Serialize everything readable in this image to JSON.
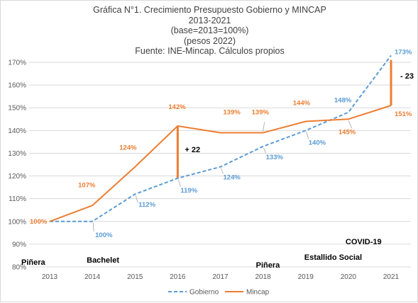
{
  "chart_data": {
    "type": "line",
    "title": "Gráfica N°1. Crecimiento Presupuesto Gobierno y MINCAP",
    "subtitle_lines": [
      "2013-2021",
      "(base=2013=100%)",
      "(pesos 2022)",
      "Fuente: INE-Mincap. Cálculos propios"
    ],
    "x": [
      "2013",
      "2014",
      "2015",
      "2016",
      "2017",
      "2018",
      "2019",
      "2020",
      "2021"
    ],
    "ylim": [
      80,
      170
    ],
    "y_ticks": [
      "80%",
      "90%",
      "100%",
      "110%",
      "120%",
      "130%",
      "140%",
      "150%",
      "160%",
      "170%"
    ],
    "grid": "horizontal",
    "legend_position": "bottom",
    "series": [
      {
        "name": "Gobierno",
        "color": "#5b9bd5",
        "style": "dashed",
        "values": [
          100,
          100,
          112,
          119,
          124,
          133,
          140,
          148,
          173
        ],
        "labels": [
          "",
          "100%",
          "112%",
          "119%",
          "124%",
          "133%",
          "140%",
          "148%",
          "173%"
        ]
      },
      {
        "name": "Mincap",
        "color": "#ed7d31",
        "style": "solid",
        "values": [
          100,
          107,
          124,
          142,
          139,
          139,
          144,
          145,
          151
        ],
        "labels": [
          "100%",
          "107%",
          "124%",
          "142%",
          "139%",
          "139%",
          "144%",
          "145%",
          "151%"
        ]
      }
    ],
    "gap_annotations": [
      {
        "x": "2016",
        "text": "+ 22",
        "from": 119,
        "to": 142
      },
      {
        "x": "2021",
        "text": "- 23",
        "from": 151,
        "to": 171
      }
    ],
    "period_labels": [
      {
        "text": "Piñera",
        "x": "2013"
      },
      {
        "text": "Bachelet",
        "x": "2014"
      },
      {
        "text": "Piñera",
        "x": "2018"
      },
      {
        "text": "Estallido Social",
        "x": "2019"
      },
      {
        "text": "COVID-19",
        "x": "2020"
      }
    ]
  }
}
